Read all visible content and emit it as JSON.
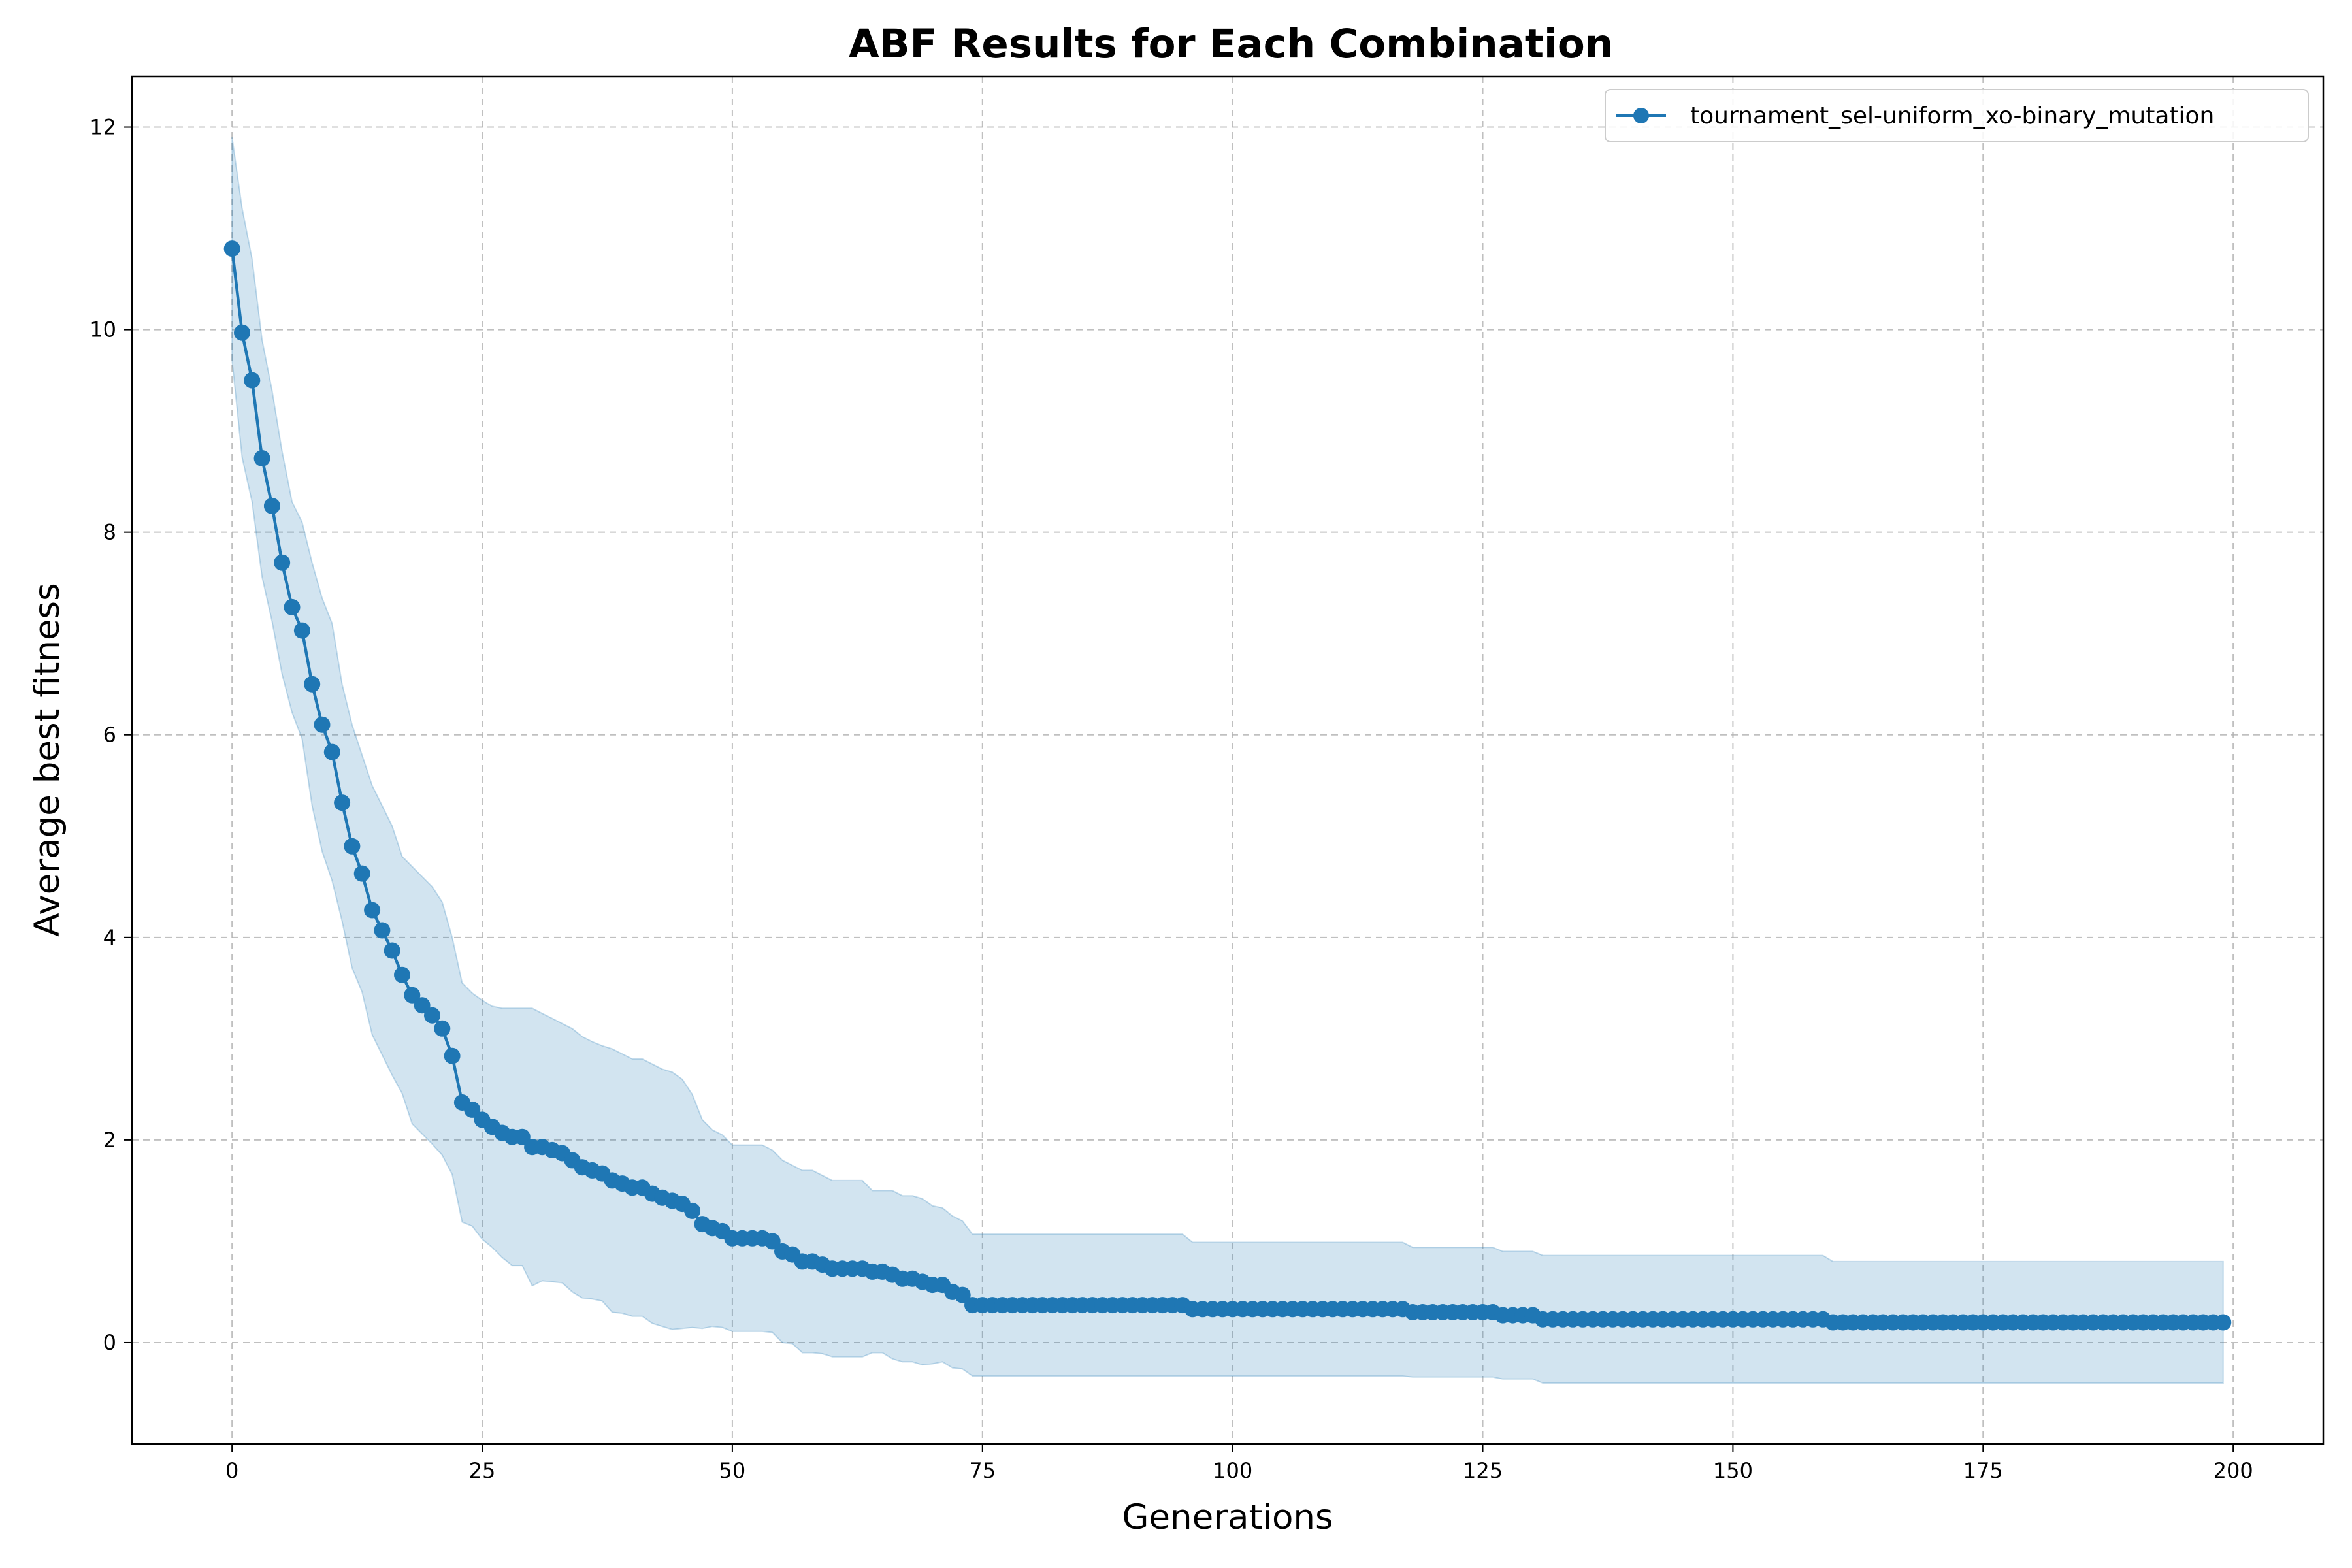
{
  "chart_data": {
    "type": "line",
    "title": "ABF Results for Each Combination",
    "xlabel": "Generations",
    "ylabel": "Average best fitness",
    "xlim": [
      -10,
      209
    ],
    "ylim": [
      -1,
      12.5
    ],
    "xticks": [
      0,
      25,
      50,
      75,
      100,
      125,
      150,
      175,
      200
    ],
    "yticks": [
      0,
      2,
      4,
      6,
      8,
      10,
      12
    ],
    "grid": true,
    "legend_position": "top-right",
    "colors": {
      "line": "#1f77b4",
      "band": "#1f77b4",
      "grid": "#b0b0b0"
    },
    "series": [
      {
        "name": "tournament_sel-uniform_xo-binary_mutation",
        "marker": "circle",
        "keypoints": [
          [
            0,
            10.8
          ],
          [
            1,
            9.97
          ],
          [
            2,
            9.5
          ],
          [
            3,
            8.73
          ],
          [
            4,
            8.26
          ],
          [
            5,
            7.7
          ],
          [
            6,
            7.26
          ],
          [
            7,
            7.03
          ],
          [
            8,
            6.5
          ],
          [
            9,
            6.1
          ],
          [
            10,
            5.83
          ],
          [
            11,
            5.33
          ],
          [
            12,
            4.9
          ],
          [
            13,
            4.63
          ],
          [
            14,
            4.27
          ],
          [
            15,
            4.07
          ],
          [
            16,
            3.87
          ],
          [
            17,
            3.63
          ],
          [
            18,
            3.43
          ],
          [
            19,
            3.33
          ],
          [
            20,
            3.23
          ],
          [
            21,
            3.1
          ],
          [
            22,
            2.83
          ],
          [
            23,
            2.37
          ],
          [
            24,
            2.3
          ],
          [
            25,
            2.2
          ],
          [
            26,
            2.13
          ],
          [
            27,
            2.07
          ],
          [
            28,
            2.03
          ],
          [
            29,
            2.03
          ],
          [
            30,
            1.93
          ],
          [
            31,
            1.93
          ],
          [
            32,
            1.9
          ],
          [
            33,
            1.87
          ],
          [
            34,
            1.8
          ],
          [
            35,
            1.73
          ],
          [
            36,
            1.7
          ],
          [
            37,
            1.67
          ],
          [
            38,
            1.6
          ],
          [
            39,
            1.57
          ],
          [
            40,
            1.53
          ],
          [
            41,
            1.53
          ],
          [
            42,
            1.47
          ],
          [
            43,
            1.43
          ],
          [
            44,
            1.4
          ],
          [
            45,
            1.37
          ],
          [
            46,
            1.3
          ],
          [
            47,
            1.17
          ],
          [
            48,
            1.13
          ],
          [
            49,
            1.1
          ],
          [
            50,
            1.03
          ],
          [
            53,
            1.03
          ],
          [
            54,
            1.0
          ],
          [
            55,
            0.9
          ],
          [
            56,
            0.87
          ],
          [
            57,
            0.8
          ],
          [
            58,
            0.8
          ],
          [
            59,
            0.77
          ],
          [
            60,
            0.73
          ],
          [
            63,
            0.73
          ],
          [
            64,
            0.7
          ],
          [
            65,
            0.7
          ],
          [
            66,
            0.67
          ],
          [
            67,
            0.63
          ],
          [
            68,
            0.63
          ],
          [
            69,
            0.6
          ],
          [
            70,
            0.57
          ],
          [
            71,
            0.57
          ],
          [
            72,
            0.5
          ],
          [
            73,
            0.47
          ],
          [
            74,
            0.37
          ],
          [
            95,
            0.37
          ],
          [
            96,
            0.33
          ],
          [
            117,
            0.33
          ],
          [
            118,
            0.3
          ],
          [
            126,
            0.3
          ],
          [
            127,
            0.27
          ],
          [
            130,
            0.27
          ],
          [
            131,
            0.23
          ],
          [
            159,
            0.23
          ],
          [
            160,
            0.2
          ],
          [
            199,
            0.2
          ]
        ],
        "band_upper": [
          [
            0,
            11.9
          ],
          [
            1,
            11.2
          ],
          [
            2,
            10.7
          ],
          [
            3,
            9.9
          ],
          [
            4,
            9.4
          ],
          [
            5,
            8.8
          ],
          [
            6,
            8.3
          ],
          [
            7,
            8.1
          ],
          [
            8,
            7.7
          ],
          [
            9,
            7.35
          ],
          [
            10,
            7.1
          ],
          [
            11,
            6.5
          ],
          [
            12,
            6.1
          ],
          [
            13,
            5.8
          ],
          [
            14,
            5.5
          ],
          [
            15,
            5.3
          ],
          [
            16,
            5.1
          ],
          [
            17,
            4.8
          ],
          [
            18,
            4.7
          ],
          [
            19,
            4.6
          ],
          [
            20,
            4.5
          ],
          [
            21,
            4.35
          ],
          [
            22,
            4.0
          ],
          [
            23,
            3.55
          ],
          [
            24,
            3.45
          ],
          [
            25,
            3.38
          ],
          [
            26,
            3.32
          ],
          [
            27,
            3.3
          ],
          [
            28,
            3.3
          ],
          [
            29,
            3.3
          ],
          [
            30,
            3.3
          ],
          [
            31,
            3.25
          ],
          [
            32,
            3.2
          ],
          [
            33,
            3.15
          ],
          [
            34,
            3.1
          ],
          [
            35,
            3.02
          ],
          [
            36,
            2.97
          ],
          [
            37,
            2.93
          ],
          [
            38,
            2.9
          ],
          [
            39,
            2.85
          ],
          [
            40,
            2.8
          ],
          [
            41,
            2.8
          ],
          [
            42,
            2.75
          ],
          [
            43,
            2.7
          ],
          [
            44,
            2.67
          ],
          [
            45,
            2.6
          ],
          [
            46,
            2.45
          ],
          [
            47,
            2.2
          ],
          [
            48,
            2.1
          ],
          [
            49,
            2.05
          ],
          [
            50,
            1.95
          ],
          [
            53,
            1.95
          ],
          [
            54,
            1.9
          ],
          [
            55,
            1.8
          ],
          [
            56,
            1.75
          ],
          [
            57,
            1.7
          ],
          [
            58,
            1.7
          ],
          [
            59,
            1.65
          ],
          [
            60,
            1.6
          ],
          [
            63,
            1.6
          ],
          [
            64,
            1.5
          ],
          [
            65,
            1.5
          ],
          [
            66,
            1.5
          ],
          [
            67,
            1.45
          ],
          [
            68,
            1.45
          ],
          [
            69,
            1.42
          ],
          [
            70,
            1.35
          ],
          [
            71,
            1.33
          ],
          [
            72,
            1.25
          ],
          [
            73,
            1.2
          ],
          [
            74,
            1.07
          ],
          [
            95,
            1.07
          ],
          [
            96,
            0.99
          ],
          [
            117,
            0.99
          ],
          [
            118,
            0.94
          ],
          [
            126,
            0.94
          ],
          [
            127,
            0.9
          ],
          [
            130,
            0.9
          ],
          [
            131,
            0.86
          ],
          [
            159,
            0.86
          ],
          [
            160,
            0.8
          ],
          [
            199,
            0.8
          ]
        ],
        "band_lower": [
          [
            0,
            9.7
          ],
          [
            1,
            8.74
          ],
          [
            2,
            8.3
          ],
          [
            3,
            7.56
          ],
          [
            4,
            7.12
          ],
          [
            5,
            6.6
          ],
          [
            6,
            6.22
          ],
          [
            7,
            5.96
          ],
          [
            8,
            5.3
          ],
          [
            9,
            4.85
          ],
          [
            10,
            4.56
          ],
          [
            11,
            4.16
          ],
          [
            12,
            3.7
          ],
          [
            13,
            3.46
          ],
          [
            14,
            3.04
          ],
          [
            15,
            2.84
          ],
          [
            16,
            2.64
          ],
          [
            17,
            2.46
          ],
          [
            18,
            2.16
          ],
          [
            19,
            2.06
          ],
          [
            20,
            1.96
          ],
          [
            21,
            1.85
          ],
          [
            22,
            1.66
          ],
          [
            23,
            1.19
          ],
          [
            24,
            1.15
          ],
          [
            25,
            1.02
          ],
          [
            26,
            0.94
          ],
          [
            27,
            0.84
          ],
          [
            28,
            0.76
          ],
          [
            29,
            0.76
          ],
          [
            30,
            0.56
          ],
          [
            31,
            0.61
          ],
          [
            32,
            0.6
          ],
          [
            33,
            0.59
          ],
          [
            34,
            0.5
          ],
          [
            35,
            0.44
          ],
          [
            36,
            0.43
          ],
          [
            37,
            0.41
          ],
          [
            38,
            0.3
          ],
          [
            39,
            0.29
          ],
          [
            40,
            0.26
          ],
          [
            41,
            0.26
          ],
          [
            42,
            0.19
          ],
          [
            43,
            0.16
          ],
          [
            44,
            0.13
          ],
          [
            45,
            0.14
          ],
          [
            46,
            0.15
          ],
          [
            47,
            0.14
          ],
          [
            48,
            0.16
          ],
          [
            49,
            0.15
          ],
          [
            50,
            0.11
          ],
          [
            53,
            0.11
          ],
          [
            54,
            0.1
          ],
          [
            55,
            0.0
          ],
          [
            56,
            -0.01
          ],
          [
            57,
            -0.1
          ],
          [
            58,
            -0.1
          ],
          [
            59,
            -0.11
          ],
          [
            60,
            -0.14
          ],
          [
            63,
            -0.14
          ],
          [
            64,
            -0.1
          ],
          [
            65,
            -0.1
          ],
          [
            66,
            -0.16
          ],
          [
            67,
            -0.19
          ],
          [
            68,
            -0.19
          ],
          [
            69,
            -0.22
          ],
          [
            70,
            -0.21
          ],
          [
            71,
            -0.19
          ],
          [
            72,
            -0.25
          ],
          [
            73,
            -0.26
          ],
          [
            74,
            -0.33
          ],
          [
            95,
            -0.33
          ],
          [
            96,
            -0.33
          ],
          [
            117,
            -0.33
          ],
          [
            118,
            -0.34
          ],
          [
            126,
            -0.34
          ],
          [
            127,
            -0.36
          ],
          [
            130,
            -0.36
          ],
          [
            131,
            -0.4
          ],
          [
            159,
            -0.4
          ],
          [
            160,
            -0.4
          ],
          [
            199,
            -0.4
          ]
        ]
      }
    ]
  }
}
